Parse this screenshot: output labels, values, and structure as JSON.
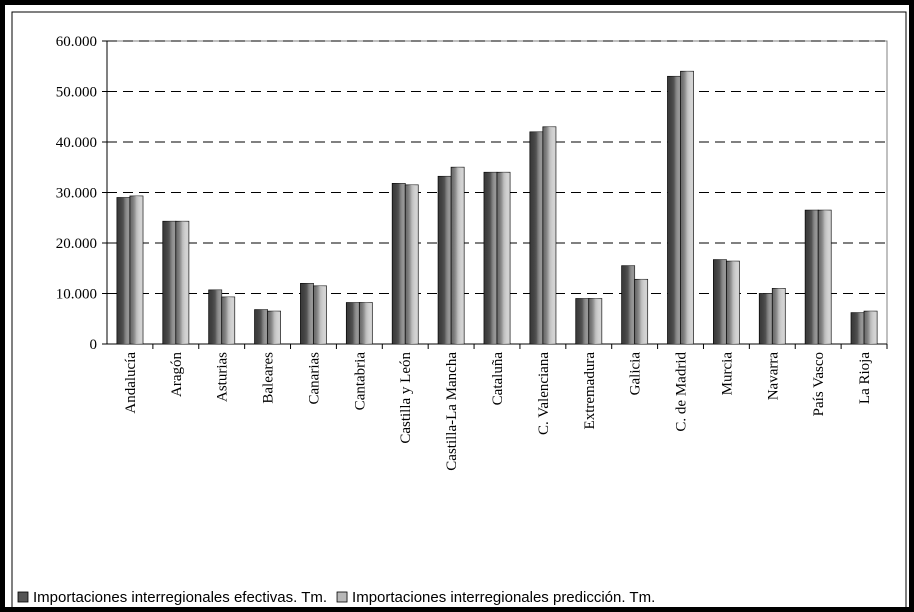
{
  "chart_data": {
    "type": "bar",
    "categories": [
      "Andalucía",
      "Aragón",
      "Asturias",
      "Baleares",
      "Canarias",
      "Cantabria",
      "Castilla y León",
      "Castilla-La Mancha",
      "Cataluña",
      "C. Valenciana",
      "Extremadura",
      "Galicia",
      "C. de Madrid",
      "Murcia",
      "Navarra",
      "País Vasco",
      "La Rioja"
    ],
    "series": [
      {
        "name": "Importaciones interregionales efectivas. Tm.",
        "color": "#555555",
        "values": [
          29000,
          24300,
          10700,
          6800,
          12000,
          8200,
          31800,
          33200,
          34000,
          42000,
          9000,
          15500,
          53000,
          16700,
          10000,
          26500,
          6200
        ]
      },
      {
        "name": "Importaciones interregionales predicción. Tm.",
        "color": "#b8b8b8",
        "values": [
          29300,
          24300,
          9300,
          6500,
          11500,
          8200,
          31500,
          35000,
          34000,
          43000,
          9000,
          12800,
          54000,
          16400,
          11000,
          26500,
          6500
        ]
      }
    ],
    "ylim": [
      0,
      60000
    ],
    "yticks": [
      0,
      {
        "value": 10000,
        "label": "10.000"
      },
      {
        "value": 20000,
        "label": "20.000"
      },
      {
        "value": 30000,
        "label": "30.000"
      },
      {
        "value": 40000,
        "label": "40.000"
      },
      {
        "value": 50000,
        "label": "50.000"
      },
      {
        "value": 60000,
        "label": "60.000"
      }
    ],
    "grid": true
  }
}
